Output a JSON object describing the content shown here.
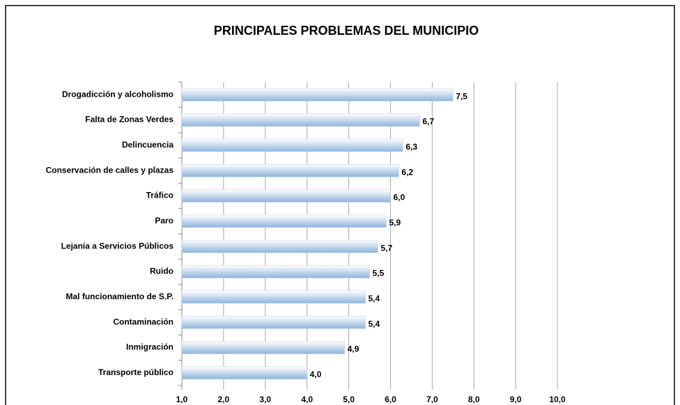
{
  "chart_data": {
    "type": "bar",
    "orientation": "horizontal",
    "title": "PRINCIPALES PROBLEMAS DEL MUNICIPIO",
    "categories": [
      "Drogadicción y alcoholismo",
      "Falta de Zonas Verdes",
      "Delincuencia",
      "Conservación de calles y plazas",
      "Tráfico",
      "Paro",
      "Lejanía a Servicios Públicos",
      "Ruido",
      "Mal funcionamiento de S.P.",
      "Contaminación",
      "Inmigración",
      "Transporte público"
    ],
    "values": [
      7.5,
      6.7,
      6.3,
      6.2,
      6.0,
      5.9,
      5.7,
      5.5,
      5.4,
      5.4,
      4.9,
      4.0
    ],
    "value_labels": [
      "7,5",
      "6,7",
      "6,3",
      "6,2",
      "6,0",
      "5,9",
      "5,7",
      "5,5",
      "5,4",
      "5,4",
      "4,9",
      "4,0"
    ],
    "color": "#8fb4dc",
    "xlim": [
      1,
      10
    ],
    "xticks": [
      {
        "value": 1,
        "label": "1,0"
      },
      {
        "value": 2,
        "label": "2,0"
      },
      {
        "value": 3,
        "label": "3,0"
      },
      {
        "value": 4,
        "label": "4,0"
      },
      {
        "value": 5,
        "label": "5,0"
      },
      {
        "value": 6,
        "label": "6,0"
      },
      {
        "value": 7,
        "label": "7,0"
      },
      {
        "value": 8,
        "label": "8,0"
      },
      {
        "value": 9,
        "label": "9,0"
      },
      {
        "value": 10,
        "label": "10,0"
      }
    ],
    "grid": true
  }
}
